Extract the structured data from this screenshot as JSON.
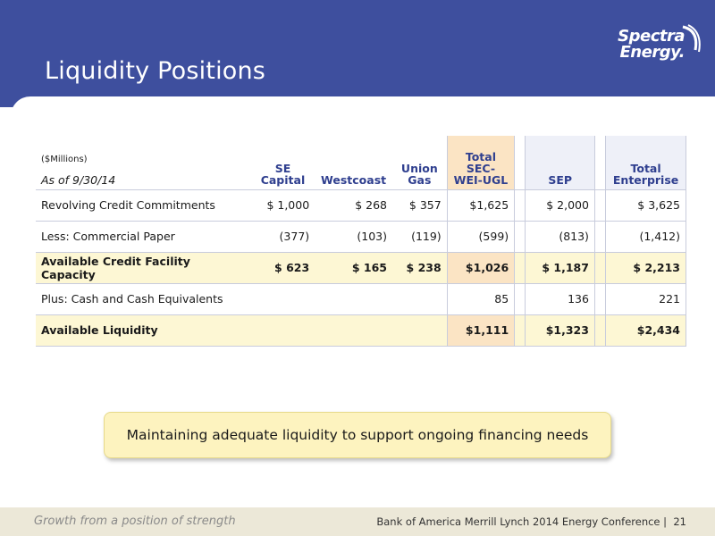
{
  "title": "Liquidity Positions",
  "logo": {
    "line1": "Spectra",
    "line2": "Energy."
  },
  "table": {
    "units": "($Millions)",
    "as_of": "As of 9/30/14",
    "headers": {
      "se": "SE Capital",
      "westcoast": "Westcoast",
      "union": "Union Gas",
      "total": "Total SEC-WEI-UGL",
      "sep": "SEP",
      "enterprise": "Total Enterprise"
    },
    "rows": [
      {
        "label": "Revolving Credit Commitments",
        "se": "$ 1,000",
        "westcoast": "$ 268",
        "union": "$ 357",
        "total": "$1,625",
        "sep": "$ 2,000",
        "enterprise": "$ 3,625"
      },
      {
        "label": "Less: Commercial Paper",
        "se": "(377)",
        "westcoast": "(103)",
        "union": "(119)",
        "total": "(599)",
        "sep": "(813)",
        "enterprise": "(1,412)"
      },
      {
        "label": "Available Credit Facility Capacity",
        "se": "$ 623",
        "westcoast": "$ 165",
        "union": "$ 238",
        "total": "$1,026",
        "sep": "$ 1,187",
        "enterprise": "$ 2,213"
      },
      {
        "label": "Plus: Cash and Cash Equivalents",
        "se": "",
        "westcoast": "",
        "union": "",
        "total": "85",
        "sep": "136",
        "enterprise": "221"
      },
      {
        "label": "Available Liquidity",
        "se": "",
        "westcoast": "",
        "union": "",
        "total": "$1,111",
        "sep": "$1,323",
        "enterprise": "$2,434"
      }
    ]
  },
  "callout": "Maintaining adequate liquidity to support ongoing financing needs",
  "footer": {
    "tagline": "Growth from a position of strength",
    "conference": "Bank of America Merrill Lynch 2014 Energy Conference",
    "page": "21"
  },
  "colors": {
    "header": "#3e4f9e",
    "highlight": "#fdf7d4",
    "peach": "#fbe4c4",
    "callout": "#fdf3bf"
  }
}
